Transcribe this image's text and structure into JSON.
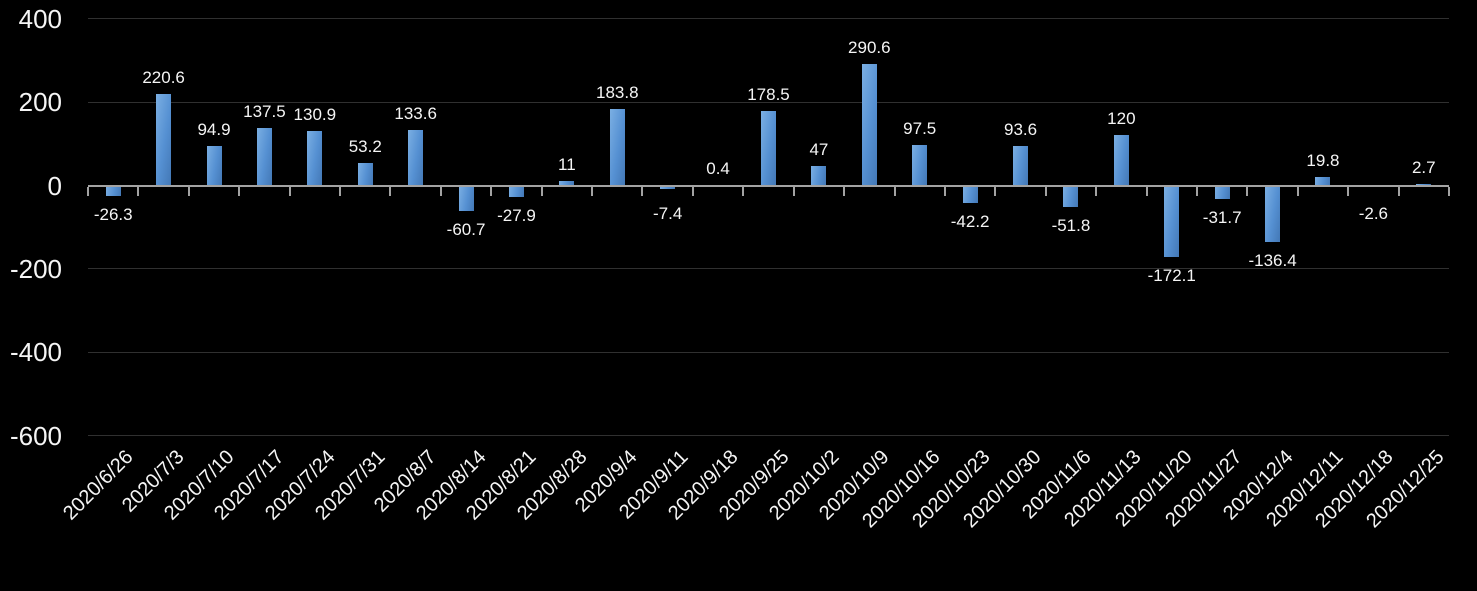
{
  "chart_data": {
    "type": "bar",
    "title": "",
    "xlabel": "",
    "ylabel": "",
    "categories": [
      "2020/6/26",
      "2020/7/3",
      "2020/7/10",
      "2020/7/17",
      "2020/7/24",
      "2020/7/31",
      "2020/8/7",
      "2020/8/14",
      "2020/8/21",
      "2020/8/28",
      "2020/9/4",
      "2020/9/11",
      "2020/9/18",
      "2020/9/25",
      "2020/10/2",
      "2020/10/9",
      "2020/10/16",
      "2020/10/23",
      "2020/10/30",
      "2020/11/6",
      "2020/11/13",
      "2020/11/20",
      "2020/11/27",
      "2020/12/4",
      "2020/12/11",
      "2020/12/18",
      "2020/12/25"
    ],
    "values": [
      -26.3,
      220.6,
      94.9,
      137.5,
      130.9,
      53.2,
      133.6,
      -60.7,
      -27.9,
      11,
      183.8,
      -7.4,
      0.4,
      178.5,
      47,
      290.6,
      97.5,
      -42.2,
      93.6,
      -51.8,
      120,
      -172.1,
      -31.7,
      -136.4,
      19.8,
      -2.6,
      2.7
    ],
    "value_labels": [
      "-26.3",
      "220.6",
      "94.9",
      "137.5",
      "130.9",
      "53.2",
      "133.6",
      "-60.7",
      "-27.9",
      "11",
      "183.8",
      "-7.4",
      "0.4",
      "178.5",
      "47",
      "290.6",
      "97.5",
      "-42.2",
      "93.6",
      "-51.8",
      "120",
      "-172.1",
      "-31.7",
      "-136.4",
      "19.8",
      "-2.6",
      "2.7"
    ],
    "ylim": [
      -600,
      400
    ],
    "yticks": [
      400,
      200,
      0,
      -200,
      -400,
      -600
    ],
    "ytick_labels": [
      "400",
      "200",
      "0",
      "-200",
      "-400",
      "-600"
    ],
    "grid": true,
    "legend_position": "none",
    "colors": {
      "background": "#000000",
      "bar_gradient_light": "#7bafe3",
      "bar_gradient_mid": "#5590d2",
      "bar_gradient_dark": "#4378b6",
      "gridline": "#303030",
      "axis_line": "#a3a3a3",
      "text": "#f5f5f5"
    }
  }
}
